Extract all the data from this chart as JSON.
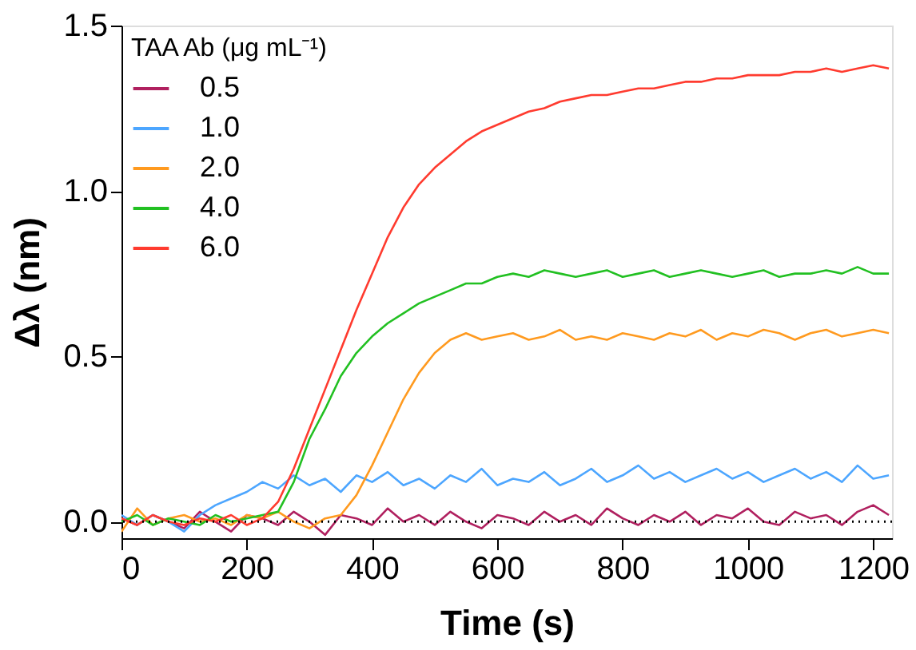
{
  "chart_data": {
    "type": "line",
    "xlabel": "Time (s)",
    "ylabel": "Δλ (nm)",
    "legend_title": "TAA Ab (μg mL⁻¹)",
    "legend": "top left",
    "grid": false,
    "marker": "none",
    "line_style": "solid",
    "x": [
      0,
      25,
      50,
      75,
      100,
      125,
      150,
      175,
      200,
      225,
      250,
      275,
      300,
      325,
      350,
      375,
      400,
      425,
      450,
      475,
      500,
      525,
      550,
      575,
      600,
      625,
      650,
      675,
      700,
      725,
      750,
      775,
      800,
      825,
      850,
      875,
      900,
      925,
      950,
      975,
      1000,
      1025,
      1050,
      1075,
      1100,
      1125,
      1150,
      1175,
      1200,
      1225
    ],
    "xlim": [
      0,
      1230
    ],
    "xticks": [
      0,
      200,
      400,
      600,
      800,
      1000,
      1200
    ],
    "ylim": [
      -0.05,
      1.5
    ],
    "yticks": [
      {
        "value": 0,
        "label": "0.0"
      },
      {
        "value": 0.5,
        "label": "0.5"
      },
      {
        "value": 1.0,
        "label": "1.0"
      },
      {
        "value": 1.5,
        "label": "1.5"
      }
    ],
    "ref_lines": [
      {
        "axis": "y",
        "value": 0,
        "label": null,
        "color": "#000000",
        "line_style": "dotted"
      }
    ],
    "series": [
      {
        "name": "0.5",
        "color": "#b0205f",
        "values": [
          0.01,
          -0.01,
          0.02,
          0,
          -0.02,
          0.03,
          0,
          -0.03,
          0.02,
          0.01,
          -0.01,
          0.03,
          0,
          -0.04,
          0.02,
          0.01,
          -0.01,
          0.04,
          0,
          0.02,
          -0.01,
          0.03,
          0,
          -0.02,
          0.02,
          0.01,
          -0.01,
          0.03,
          0,
          0.02,
          -0.01,
          0.04,
          0.01,
          -0.01,
          0.02,
          0,
          0.03,
          -0.01,
          0.02,
          0.01,
          0.04,
          0,
          -0.01,
          0.03,
          0.01,
          0.02,
          -0.01,
          0.03,
          0.05,
          0.02
        ]
      },
      {
        "name": "1.0",
        "color": "#4da6ff",
        "values": [
          0.02,
          -0.01,
          0.02,
          0,
          -0.03,
          0.02,
          0.05,
          0.07,
          0.09,
          0.12,
          0.1,
          0.14,
          0.11,
          0.13,
          0.09,
          0.14,
          0.12,
          0.15,
          0.11,
          0.13,
          0.1,
          0.14,
          0.12,
          0.16,
          0.11,
          0.13,
          0.12,
          0.15,
          0.11,
          0.13,
          0.16,
          0.12,
          0.14,
          0.17,
          0.13,
          0.15,
          0.12,
          0.14,
          0.16,
          0.13,
          0.15,
          0.12,
          0.14,
          0.16,
          0.13,
          0.15,
          0.12,
          0.17,
          0.13,
          0.14
        ]
      },
      {
        "name": "2.0",
        "color": "#ff9a1f",
        "values": [
          -0.03,
          0.04,
          -0.01,
          0.01,
          0.02,
          0,
          0.01,
          -0.01,
          0.02,
          0.01,
          0.03,
          0,
          -0.02,
          0.01,
          0.02,
          0.08,
          0.17,
          0.27,
          0.37,
          0.45,
          0.51,
          0.55,
          0.57,
          0.55,
          0.56,
          0.57,
          0.55,
          0.56,
          0.58,
          0.55,
          0.56,
          0.55,
          0.57,
          0.56,
          0.55,
          0.57,
          0.56,
          0.58,
          0.55,
          0.57,
          0.56,
          0.58,
          0.57,
          0.55,
          0.57,
          0.58,
          0.56,
          0.57,
          0.58,
          0.57
        ]
      },
      {
        "name": "4.0",
        "color": "#22c022",
        "values": [
          0,
          0.02,
          -0.01,
          0.01,
          0,
          -0.01,
          0.02,
          0,
          0.01,
          0.02,
          0.03,
          0.12,
          0.25,
          0.34,
          0.44,
          0.51,
          0.56,
          0.6,
          0.63,
          0.66,
          0.68,
          0.7,
          0.72,
          0.72,
          0.74,
          0.75,
          0.74,
          0.76,
          0.75,
          0.74,
          0.75,
          0.76,
          0.74,
          0.75,
          0.76,
          0.74,
          0.75,
          0.76,
          0.75,
          0.74,
          0.75,
          0.76,
          0.74,
          0.75,
          0.75,
          0.76,
          0.75,
          0.77,
          0.75,
          0.75
        ]
      },
      {
        "name": "6.0",
        "color": "#ff3b2f",
        "values": [
          0.01,
          -0.01,
          0.02,
          0,
          -0.01,
          0.01,
          0,
          0.02,
          -0.01,
          0.01,
          0.06,
          0.16,
          0.28,
          0.4,
          0.52,
          0.64,
          0.75,
          0.86,
          0.95,
          1.02,
          1.07,
          1.11,
          1.15,
          1.18,
          1.2,
          1.22,
          1.24,
          1.25,
          1.27,
          1.28,
          1.29,
          1.29,
          1.3,
          1.31,
          1.31,
          1.32,
          1.33,
          1.33,
          1.34,
          1.34,
          1.35,
          1.35,
          1.35,
          1.36,
          1.36,
          1.37,
          1.36,
          1.37,
          1.38,
          1.37
        ]
      }
    ]
  }
}
